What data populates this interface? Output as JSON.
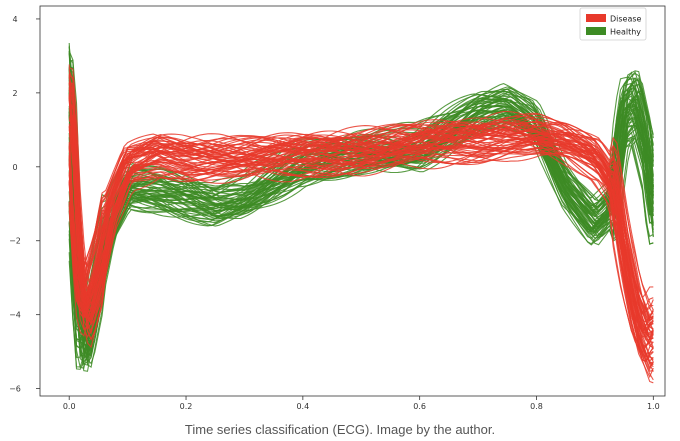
{
  "caption": "Time series classification (ECG). Image by the author.",
  "chart_data": {
    "type": "line",
    "xlim": [
      -0.05,
      1.02
    ],
    "ylim": [
      -6.2,
      4.35
    ],
    "x_ticks": [
      0.0,
      0.2,
      0.4,
      0.6,
      0.8,
      1.0
    ],
    "x_tick_labels": [
      "0.0",
      "0.2",
      "0.4",
      "0.6",
      "0.8",
      "1.0"
    ],
    "y_ticks": [
      4,
      2,
      0,
      -2,
      -4,
      -6
    ],
    "y_tick_labels": [
      "4",
      "2",
      "0",
      "−2",
      "−4",
      "−6"
    ],
    "grid": false,
    "legend_position": "top-right",
    "series": [
      {
        "name": "Disease",
        "color": "#e8392b",
        "x": [
          0.0,
          0.01,
          0.02,
          0.03,
          0.05,
          0.07,
          0.1,
          0.15,
          0.2,
          0.25,
          0.3,
          0.4,
          0.5,
          0.6,
          0.7,
          0.75,
          0.8,
          0.85,
          0.9,
          0.93,
          0.95,
          0.97,
          0.99,
          1.0
        ],
        "y": [
          1.8,
          -1.5,
          -3.5,
          -3.9,
          -2.8,
          -1.2,
          0.0,
          0.3,
          0.2,
          0.2,
          0.2,
          0.3,
          0.4,
          0.6,
          0.7,
          0.8,
          0.8,
          0.6,
          0.2,
          -0.5,
          -2.5,
          -4.0,
          -4.8,
          -4.5
        ]
      },
      {
        "name": "Healthy",
        "color": "#3d8b24",
        "x": [
          0.0,
          0.01,
          0.02,
          0.03,
          0.05,
          0.07,
          0.1,
          0.15,
          0.2,
          0.25,
          0.3,
          0.4,
          0.5,
          0.6,
          0.65,
          0.7,
          0.75,
          0.8,
          0.85,
          0.9,
          0.93,
          0.95,
          0.97,
          0.99,
          1.0
        ],
        "y": [
          2.5,
          -2.0,
          -4.5,
          -4.6,
          -3.0,
          -1.5,
          -0.5,
          -0.6,
          -0.8,
          -1.0,
          -0.8,
          0.1,
          0.4,
          0.5,
          1.0,
          1.5,
          1.7,
          1.2,
          -0.5,
          -1.5,
          -1.0,
          1.5,
          1.8,
          0.5,
          -1.0
        ]
      }
    ]
  }
}
